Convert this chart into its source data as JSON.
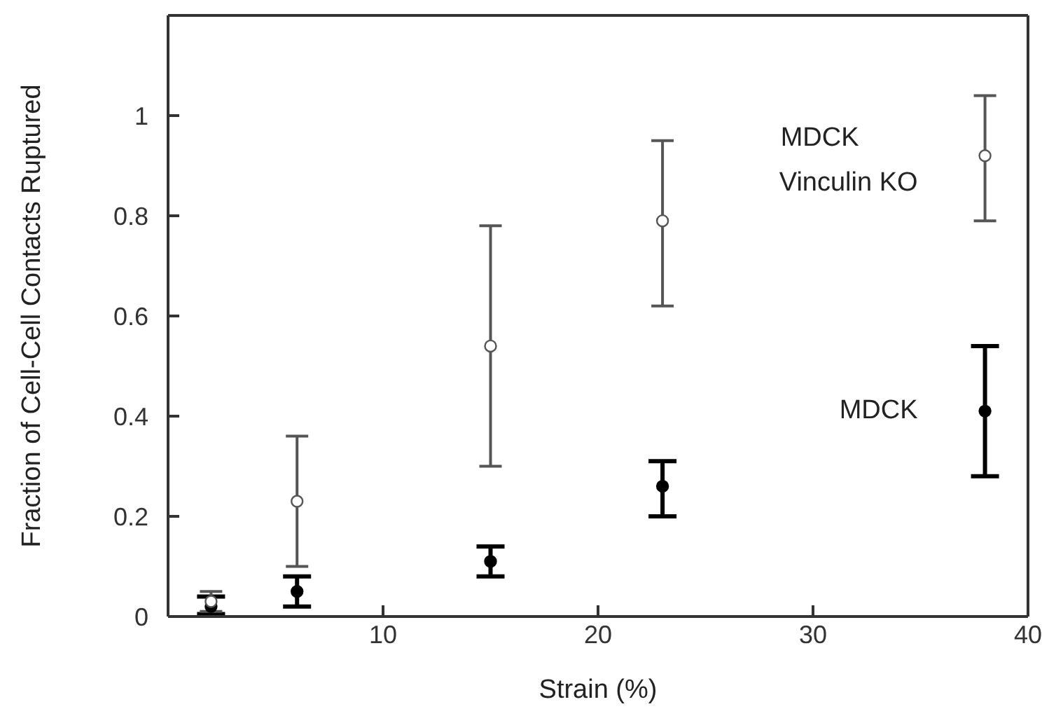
{
  "chart_data": {
    "type": "scatter",
    "xlabel": "Strain (%)",
    "ylabel": "Fraction of Cell-Cell Contacts Ruptured",
    "x": [
      2,
      6,
      15,
      23,
      38
    ],
    "series": [
      {
        "name": "MDCK Vinculin KO",
        "color": "#555555",
        "values": [
          0.03,
          0.23,
          0.54,
          0.79,
          0.92
        ],
        "errors": [
          [
            0.01,
            0.05
          ],
          [
            0.1,
            0.36
          ],
          [
            0.3,
            0.78
          ],
          [
            0.62,
            0.95
          ],
          [
            0.79,
            1.04
          ]
        ]
      },
      {
        "name": "MDCK",
        "color": "#000000",
        "values": [
          0.02,
          0.05,
          0.11,
          0.26,
          0.41
        ],
        "errors": [
          [
            0.005,
            0.04
          ],
          [
            0.02,
            0.08
          ],
          [
            0.08,
            0.14
          ],
          [
            0.2,
            0.31
          ],
          [
            0.28,
            0.54
          ]
        ]
      }
    ],
    "xlim": [
      0,
      40
    ],
    "xticks": [
      10,
      20,
      30,
      40
    ],
    "ylim": [
      0,
      1.2
    ],
    "yticks": [
      0,
      0.2,
      0.4,
      0.6,
      0.8,
      1
    ],
    "marker": "circle",
    "legend": false
  }
}
